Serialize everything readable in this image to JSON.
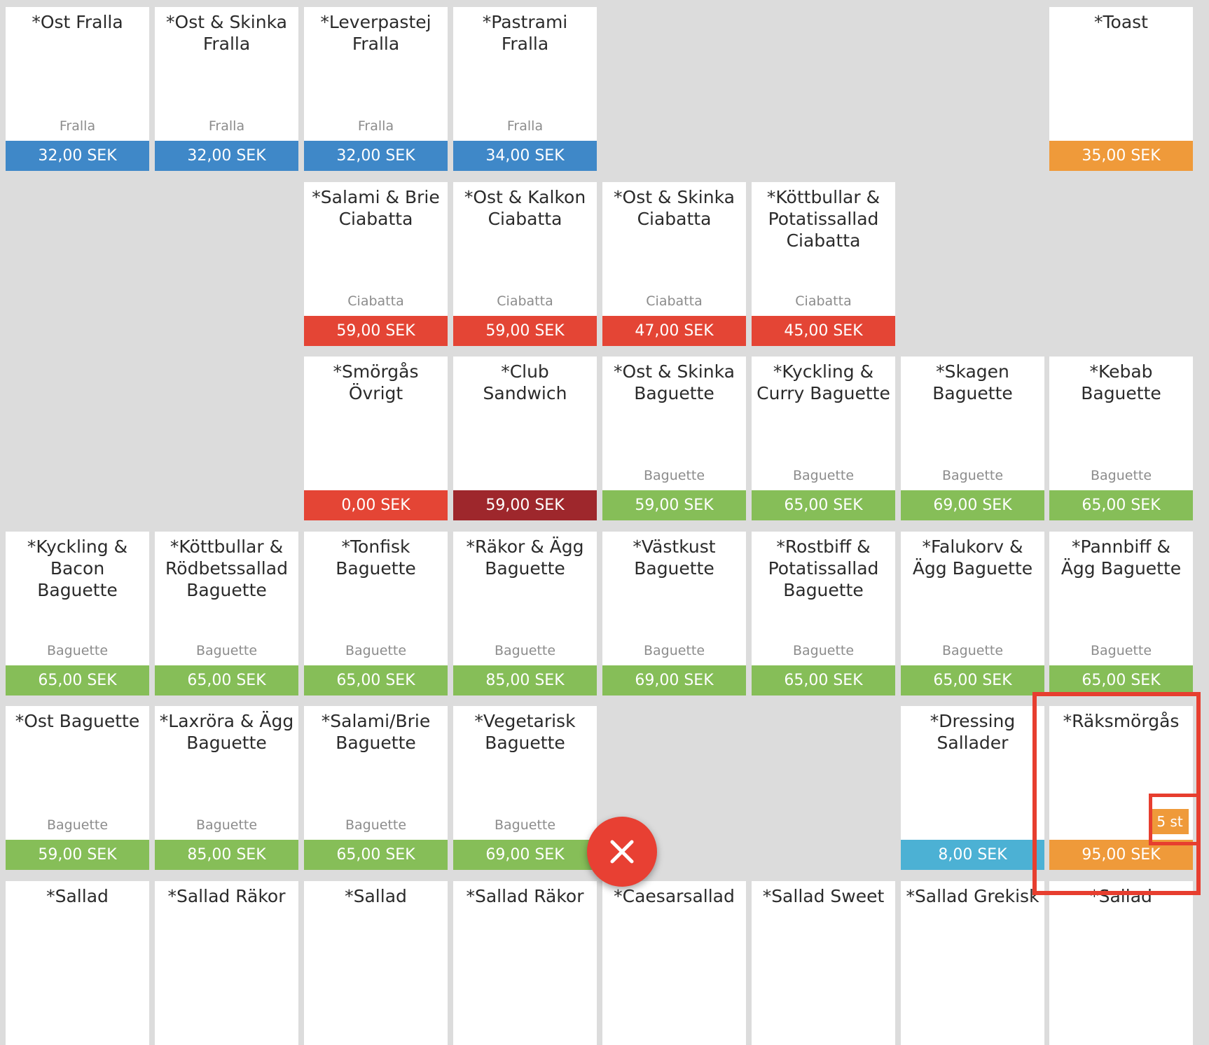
{
  "tiles": [
    {
      "title": "*Ost Fralla",
      "category": "Fralla",
      "price": "32,00 SEK",
      "color": "blue"
    },
    {
      "title": "*Ost & Skinka Fralla",
      "category": "Fralla",
      "price": "32,00 SEK",
      "color": "blue"
    },
    {
      "title": "*Leverpastej Fralla",
      "category": "Fralla",
      "price": "32,00 SEK",
      "color": "blue"
    },
    {
      "title": "*Pastrami Fralla",
      "category": "Fralla",
      "price": "34,00 SEK",
      "color": "blue"
    },
    {
      "title": "*Toast",
      "category": "",
      "price": "35,00 SEK",
      "color": "orange"
    },
    {
      "title": "*Salami & Brie Ciabatta",
      "category": "Ciabatta",
      "price": "59,00 SEK",
      "color": "red"
    },
    {
      "title": "*Ost & Kalkon Ciabatta",
      "category": "Ciabatta",
      "price": "59,00 SEK",
      "color": "red"
    },
    {
      "title": "*Ost & Skinka Ciabatta",
      "category": "Ciabatta",
      "price": "47,00 SEK",
      "color": "red"
    },
    {
      "title": "*Köttbullar & Potatissallad Ciabatta",
      "category": "Ciabatta",
      "price": "45,00 SEK",
      "color": "red"
    },
    {
      "title": "*Smörgås Övrigt",
      "category": "",
      "price": "0,00 SEK",
      "color": "red"
    },
    {
      "title": "*Club Sandwich",
      "category": "",
      "price": "59,00 SEK",
      "color": "darkred"
    },
    {
      "title": "*Ost & Skinka Baguette",
      "category": "Baguette",
      "price": "59,00 SEK",
      "color": "green"
    },
    {
      "title": "*Kyckling & Curry Baguette",
      "category": "Baguette",
      "price": "65,00 SEK",
      "color": "green"
    },
    {
      "title": "*Skagen Baguette",
      "category": "Baguette",
      "price": "69,00 SEK",
      "color": "green"
    },
    {
      "title": "*Kebab Baguette",
      "category": "Baguette",
      "price": "65,00 SEK",
      "color": "green"
    },
    {
      "title": "*Kyckling & Bacon Baguette",
      "category": "Baguette",
      "price": "65,00 SEK",
      "color": "green"
    },
    {
      "title": "*Köttbullar & Rödbetssallad Baguette",
      "category": "Baguette",
      "price": "65,00 SEK",
      "color": "green"
    },
    {
      "title": "*Tonfisk Baguette",
      "category": "Baguette",
      "price": "65,00 SEK",
      "color": "green"
    },
    {
      "title": "*Räkor & Ägg Baguette",
      "category": "Baguette",
      "price": "85,00 SEK",
      "color": "green"
    },
    {
      "title": "*Västkust Baguette",
      "category": "Baguette",
      "price": "69,00 SEK",
      "color": "green"
    },
    {
      "title": "*Rostbiff & Potatissallad Baguette",
      "category": "Baguette",
      "price": "65,00 SEK",
      "color": "green"
    },
    {
      "title": "*Falukorv & Ägg Baguette",
      "category": "Baguette",
      "price": "65,00 SEK",
      "color": "green"
    },
    {
      "title": "*Pannbiff & Ägg Baguette",
      "category": "Baguette",
      "price": "65,00 SEK",
      "color": "green"
    },
    {
      "title": "*Ost Baguette",
      "category": "Baguette",
      "price": "59,00 SEK",
      "color": "green"
    },
    {
      "title": "*Laxröra & Ägg Baguette",
      "category": "Baguette",
      "price": "85,00 SEK",
      "color": "green"
    },
    {
      "title": "*Salami/Brie Baguette",
      "category": "Baguette",
      "price": "65,00 SEK",
      "color": "green"
    },
    {
      "title": "*Vegetarisk Baguette",
      "category": "Baguette",
      "price": "69,00 SEK",
      "color": "green"
    },
    {
      "title": "*Dressing Sallader",
      "category": "",
      "price": "8,00 SEK",
      "color": "lightblue"
    },
    {
      "title": "*Räksmörgås",
      "category": "",
      "price": "95,00 SEK",
      "color": "orange",
      "quantity": "5 st"
    },
    {
      "title": "*Sallad",
      "category": "",
      "price": "",
      "color": ""
    },
    {
      "title": "*Sallad Räkor",
      "category": "",
      "price": "",
      "color": ""
    },
    {
      "title": "*Sallad",
      "category": "",
      "price": "",
      "color": ""
    },
    {
      "title": "*Sallad Räkor",
      "category": "",
      "price": "",
      "color": ""
    },
    {
      "title": "*Caesarsallad",
      "category": "",
      "price": "",
      "color": ""
    },
    {
      "title": "*Sallad Sweet",
      "category": "",
      "price": "",
      "color": ""
    },
    {
      "title": "*Sallad Grekisk",
      "category": "",
      "price": "",
      "color": ""
    },
    {
      "title": "*Sallad",
      "category": "",
      "price": "",
      "color": ""
    }
  ],
  "close_button": {
    "icon": "close-icon",
    "color": "#e84033"
  },
  "colors": {
    "blue": "#3f88c8",
    "orange": "#ef9a3a",
    "red": "#e44535",
    "darkred": "#9e272c",
    "green": "#86be58",
    "lightblue": "#4cb1d4",
    "highlight": "#e73e2f"
  }
}
